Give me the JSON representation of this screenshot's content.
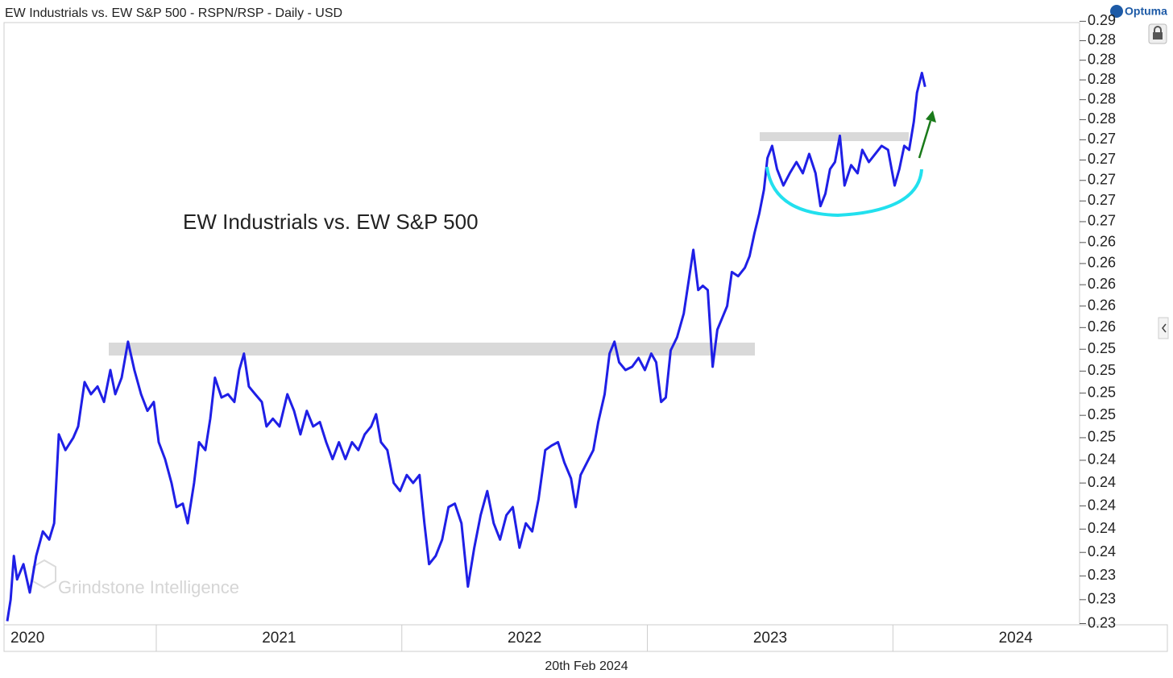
{
  "chart_data": {
    "type": "line",
    "title": "EW Industrials vs. EW S&P 500 - RSPN/RSP - Daily - USD",
    "brand": "Optuma",
    "annotation": "EW Industrials vs. EW S&P 500",
    "watermark": "Grindstone Intelligence",
    "date_label": "20th Feb 2024",
    "log_scale": true,
    "xlim": [
      2020.38,
      2024.76
    ],
    "xticks": [
      2020,
      2021,
      2022,
      2023,
      2024
    ],
    "ylim": [
      0.2299,
      0.2862
    ],
    "yticks": [
      {
        "value": 0.23,
        "label": "0.23"
      },
      {
        "value": 0.232,
        "label": "0.23"
      },
      {
        "value": 0.234,
        "label": "0.23"
      },
      {
        "value": 0.236,
        "label": "0.24"
      },
      {
        "value": 0.238,
        "label": "0.24"
      },
      {
        "value": 0.24,
        "label": "0.24"
      },
      {
        "value": 0.242,
        "label": "0.24"
      },
      {
        "value": 0.244,
        "label": "0.24"
      },
      {
        "value": 0.246,
        "label": "0.25"
      },
      {
        "value": 0.248,
        "label": "0.25"
      },
      {
        "value": 0.25,
        "label": "0.25"
      },
      {
        "value": 0.252,
        "label": "0.25"
      },
      {
        "value": 0.254,
        "label": "0.25"
      },
      {
        "value": 0.256,
        "label": "0.26"
      },
      {
        "value": 0.258,
        "label": "0.26"
      },
      {
        "value": 0.26,
        "label": "0.26"
      },
      {
        "value": 0.262,
        "label": "0.26"
      },
      {
        "value": 0.264,
        "label": "0.26"
      },
      {
        "value": 0.266,
        "label": "0.27"
      },
      {
        "value": 0.268,
        "label": "0.27"
      },
      {
        "value": 0.27,
        "label": "0.27"
      },
      {
        "value": 0.272,
        "label": "0.27"
      },
      {
        "value": 0.274,
        "label": "0.27"
      },
      {
        "value": 0.276,
        "label": "0.28"
      },
      {
        "value": 0.278,
        "label": "0.28"
      },
      {
        "value": 0.28,
        "label": "0.28"
      },
      {
        "value": 0.282,
        "label": "0.28"
      },
      {
        "value": 0.284,
        "label": "0.28"
      },
      {
        "value": 0.286,
        "label": "0.29"
      }
    ],
    "series": [
      {
        "name": "RSPN/RSP",
        "color": "#1f1fe6",
        "x": [
          2020.393,
          2020.407,
          2020.42,
          2020.433,
          2020.459,
          2020.485,
          2020.511,
          2020.538,
          2020.564,
          2020.584,
          2020.603,
          2020.63,
          2020.662,
          2020.682,
          2020.708,
          2020.734,
          2020.761,
          2020.787,
          2020.813,
          2020.833,
          2020.859,
          2020.885,
          2020.911,
          2020.938,
          2020.964,
          2020.99,
          2021.01,
          2021.036,
          2021.062,
          2021.082,
          2021.108,
          2021.128,
          2021.154,
          2021.174,
          2021.2,
          2021.22,
          2021.239,
          2021.266,
          2021.292,
          2021.318,
          2021.338,
          2021.357,
          2021.377,
          2021.403,
          2021.43,
          2021.449,
          2021.475,
          2021.502,
          2021.534,
          2021.561,
          2021.587,
          2021.613,
          2021.639,
          2021.666,
          2021.692,
          2021.718,
          2021.744,
          2021.77,
          2021.797,
          2021.823,
          2021.849,
          2021.875,
          2021.895,
          2021.915,
          2021.941,
          2021.967,
          2021.993,
          2022.02,
          2022.046,
          2022.072,
          2022.092,
          2022.111,
          2022.138,
          2022.164,
          2022.19,
          2022.216,
          2022.243,
          2022.269,
          2022.295,
          2022.321,
          2022.348,
          2022.374,
          2022.4,
          2022.426,
          2022.452,
          2022.479,
          2022.505,
          2022.531,
          2022.557,
          2022.584,
          2022.61,
          2022.636,
          2022.662,
          2022.689,
          2022.708,
          2022.728,
          2022.754,
          2022.78,
          2022.8,
          2022.826,
          2022.846,
          2022.866,
          2022.885,
          2022.911,
          2022.938,
          2022.964,
          2022.99,
          2023.016,
          2023.036,
          2023.056,
          2023.075,
          2023.095,
          2023.121,
          2023.148,
          2023.167,
          2023.187,
          2023.207,
          2023.226,
          2023.246,
          2023.266,
          2023.285,
          2023.305,
          2023.325,
          2023.344,
          2023.37,
          2023.397,
          2023.416,
          2023.436,
          2023.456,
          2023.475,
          2023.489,
          2023.508,
          2023.528,
          2023.554,
          2023.58,
          2023.607,
          2023.633,
          2023.659,
          2023.685,
          2023.705,
          2023.725,
          2023.744,
          2023.764,
          2023.784,
          2023.803,
          2023.83,
          2023.856,
          2023.875,
          2023.902,
          2023.928,
          2023.954,
          2023.98,
          2024.007,
          2024.026,
          2024.046,
          2024.066,
          2024.085,
          2024.098,
          2024.118,
          2024.131
        ],
        "values": [
          0.2302,
          0.232,
          0.2357,
          0.2337,
          0.235,
          0.2326,
          0.2357,
          0.2378,
          0.2371,
          0.2385,
          0.2463,
          0.2449,
          0.246,
          0.247,
          0.251,
          0.2499,
          0.2506,
          0.2492,
          0.2521,
          0.2499,
          0.2514,
          0.2547,
          0.2521,
          0.2499,
          0.2484,
          0.2492,
          0.2456,
          0.2441,
          0.242,
          0.2399,
          0.2402,
          0.2385,
          0.242,
          0.2456,
          0.2449,
          0.2477,
          0.2514,
          0.2496,
          0.2499,
          0.2492,
          0.2521,
          0.2536,
          0.2506,
          0.2499,
          0.2492,
          0.247,
          0.2477,
          0.247,
          0.2499,
          0.2484,
          0.2463,
          0.2484,
          0.247,
          0.2474,
          0.2456,
          0.2441,
          0.2456,
          0.2441,
          0.2456,
          0.2449,
          0.2463,
          0.247,
          0.2481,
          0.2456,
          0.2449,
          0.242,
          0.2413,
          0.2427,
          0.242,
          0.2427,
          0.2385,
          0.235,
          0.2357,
          0.2371,
          0.2399,
          0.2402,
          0.2385,
          0.2331,
          0.2364,
          0.2392,
          0.2413,
          0.2385,
          0.2371,
          0.2392,
          0.2399,
          0.2364,
          0.2385,
          0.2378,
          0.2406,
          0.2449,
          0.2453,
          0.2456,
          0.2438,
          0.2424,
          0.2399,
          0.2427,
          0.2438,
          0.2449,
          0.2474,
          0.2499,
          0.2536,
          0.2547,
          0.2528,
          0.2521,
          0.2524,
          0.2532,
          0.2521,
          0.2536,
          0.2528,
          0.2492,
          0.2496,
          0.2539,
          0.2551,
          0.2573,
          0.2602,
          0.2633,
          0.2595,
          0.2599,
          0.2595,
          0.2524,
          0.2558,
          0.2569,
          0.258,
          0.2612,
          0.2608,
          0.2616,
          0.2627,
          0.2649,
          0.2668,
          0.2691,
          0.2722,
          0.2734,
          0.2711,
          0.2695,
          0.2707,
          0.2718,
          0.2707,
          0.2726,
          0.2707,
          0.2675,
          0.2687,
          0.2711,
          0.2718,
          0.2744,
          0.2695,
          0.2715,
          0.2707,
          0.273,
          0.2718,
          0.2726,
          0.2734,
          0.273,
          0.2695,
          0.2711,
          0.2734,
          0.273,
          0.2758,
          0.2787,
          0.2807,
          0.2793
        ]
      }
    ]
  }
}
